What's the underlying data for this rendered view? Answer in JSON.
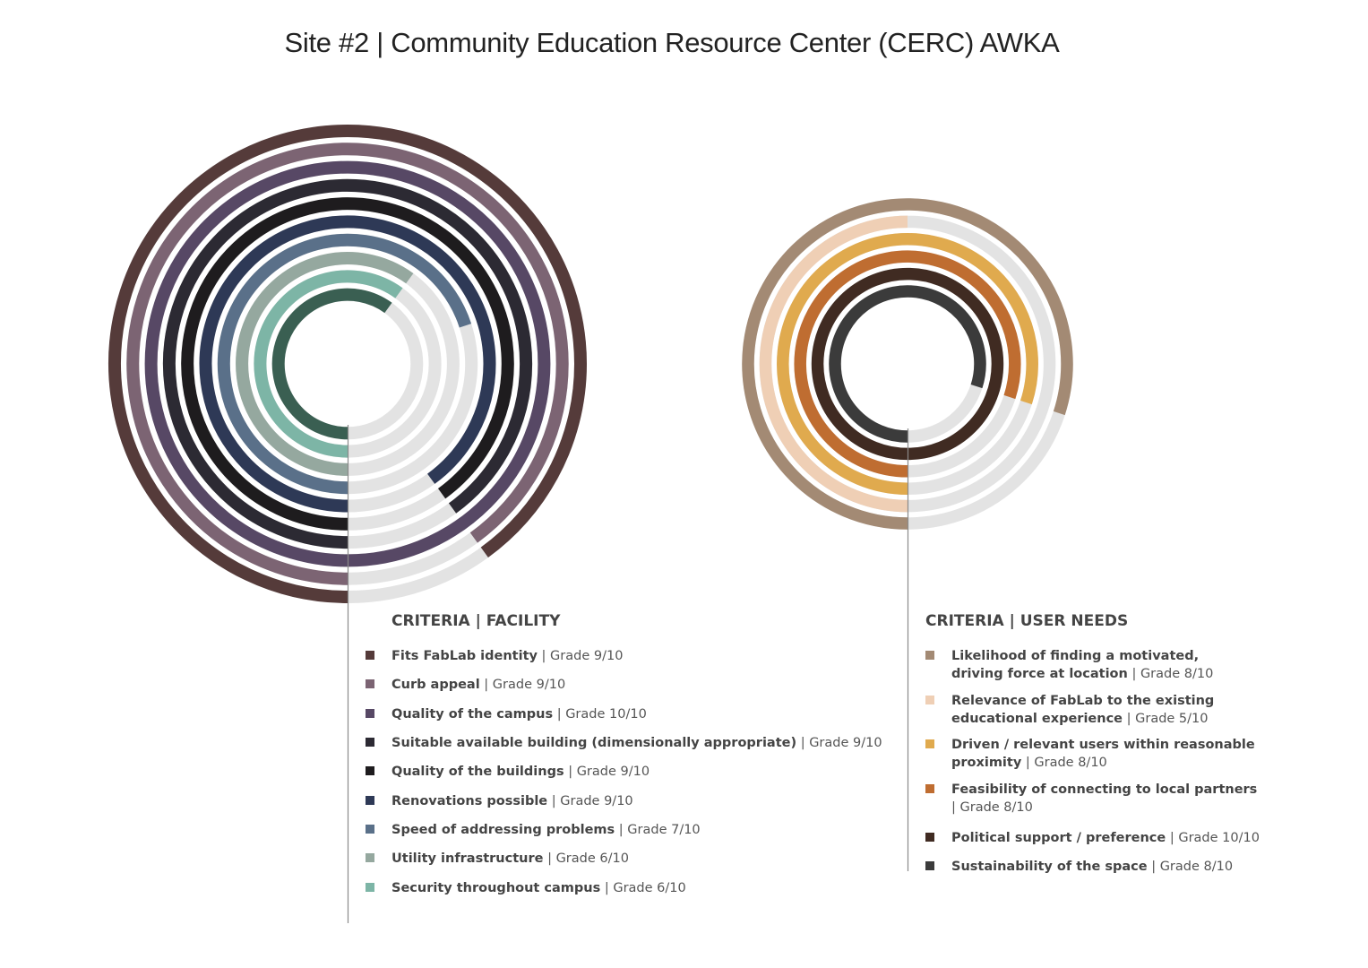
{
  "title": "Site #2 | Community Education Resource Center (CERC) AWKA",
  "chart_data": [
    {
      "type": "radial-bar",
      "max": 10,
      "legend_title": "CRITERIA | FACILITY",
      "series": [
        {
          "name": "Fits FabLab identity",
          "grade": "| Grade 9/10",
          "value": 9,
          "color": "#553b3a"
        },
        {
          "name": "Curb appeal",
          "grade": "| Grade 9/10",
          "value": 9,
          "color": "#7c6473"
        },
        {
          "name": "Quality of the campus",
          "grade": "| Grade 10/10",
          "value": 10,
          "color": "#574865"
        },
        {
          "name": "Suitable available building (dimensionally appropriate)",
          "grade": "| Grade 9/10",
          "value": 9,
          "color": "#2c2a33"
        },
        {
          "name": "Quality of the buildings",
          "grade": "| Grade 9/10",
          "value": 9,
          "color": "#1e1c1e"
        },
        {
          "name": "Renovations possible",
          "grade": "| Grade 9/10",
          "value": 9,
          "color": "#2e3956"
        },
        {
          "name": "Speed of addressing  problems",
          "grade": "| Grade 7/10",
          "value": 7,
          "color": "#5a7089"
        },
        {
          "name": "Utility infrastructure",
          "grade": "| Grade 6/10",
          "value": 6,
          "color": "#95a89f"
        },
        {
          "name": "Security throughout campus",
          "grade": "| Grade 6/10",
          "value": 6,
          "color": "#7db5a6"
        },
        {
          "name": "",
          "grade": "",
          "value": 6,
          "color": "#3a5f52"
        }
      ]
    },
    {
      "type": "radial-bar",
      "max": 10,
      "legend_title": "CRITERIA | USER NEEDS",
      "series": [
        {
          "name": "Likelihood of finding a motivated,",
          "name2": "driving force at location",
          "grade": "| Grade 8/10",
          "value": 8,
          "color": "#a38a74"
        },
        {
          "name": "Relevance of FabLab to the existing",
          "name2": "educational experience",
          "grade": "| Grade 5/10",
          "value": 5,
          "color": "#efcfb5"
        },
        {
          "name": "Driven / relevant users within reasonable",
          "name2": "proximity",
          "grade": "| Grade 8/10",
          "value": 8,
          "color": "#e0aa4e"
        },
        {
          "name": "Feasibility of connecting to local partners",
          "name2": "",
          "grade": "| Grade 8/10",
          "value": 8,
          "color": "#bf6d31"
        },
        {
          "name": "Political support / preference",
          "grade": "| Grade 10/10",
          "value": 10,
          "color": "#402b22"
        },
        {
          "name": "Sustainability of the space",
          "grade": "| Grade 8/10",
          "value": 8,
          "color": "#3b3b3b"
        }
      ]
    }
  ]
}
